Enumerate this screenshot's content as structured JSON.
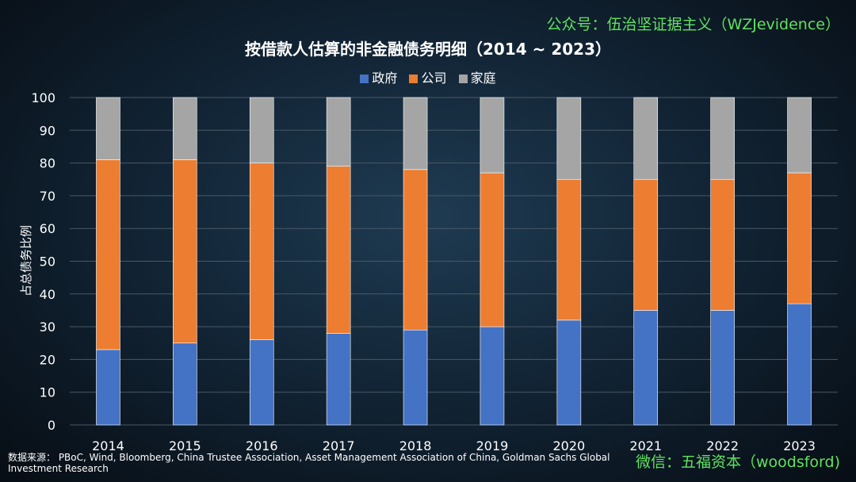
{
  "watermark_top": "公众号：伍治坚证据主义（WZJevidence）",
  "watermark_bottom": "微信：五福资本（woodsford)",
  "source_note": "数据来源：  PBoC, Wind, Bloomberg, China Trustee Association, Asset Management Association of China, Goldman Sachs Global Investment Research",
  "colors": {
    "政府": "#4472c4",
    "公司": "#ed7d31",
    "家庭": "#a5a5a5",
    "watermark": "#5fe35f",
    "grid": "#4a5866"
  },
  "chart_data": {
    "type": "bar",
    "stacked": true,
    "title": "按借款人估算的非金融债务明细（2014 ~ 2023）",
    "xlabel": "",
    "ylabel": "占总债务比例",
    "ylim": [
      0,
      100
    ],
    "yticks": [
      0,
      10,
      20,
      30,
      40,
      50,
      60,
      70,
      80,
      90,
      100
    ],
    "categories": [
      "2014",
      "2015",
      "2016",
      "2017",
      "2018",
      "2019",
      "2020",
      "2021",
      "2022",
      "2023"
    ],
    "series": [
      {
        "name": "政府",
        "values": [
          23,
          25,
          26,
          28,
          29,
          30,
          32,
          35,
          35,
          37
        ]
      },
      {
        "name": "公司",
        "values": [
          58,
          56,
          54,
          51,
          49,
          47,
          43,
          40,
          40,
          40
        ]
      },
      {
        "name": "家庭",
        "values": [
          19,
          19,
          20,
          21,
          22,
          23,
          25,
          25,
          25,
          23
        ]
      }
    ],
    "legend_position": "top-center",
    "grid": true
  }
}
